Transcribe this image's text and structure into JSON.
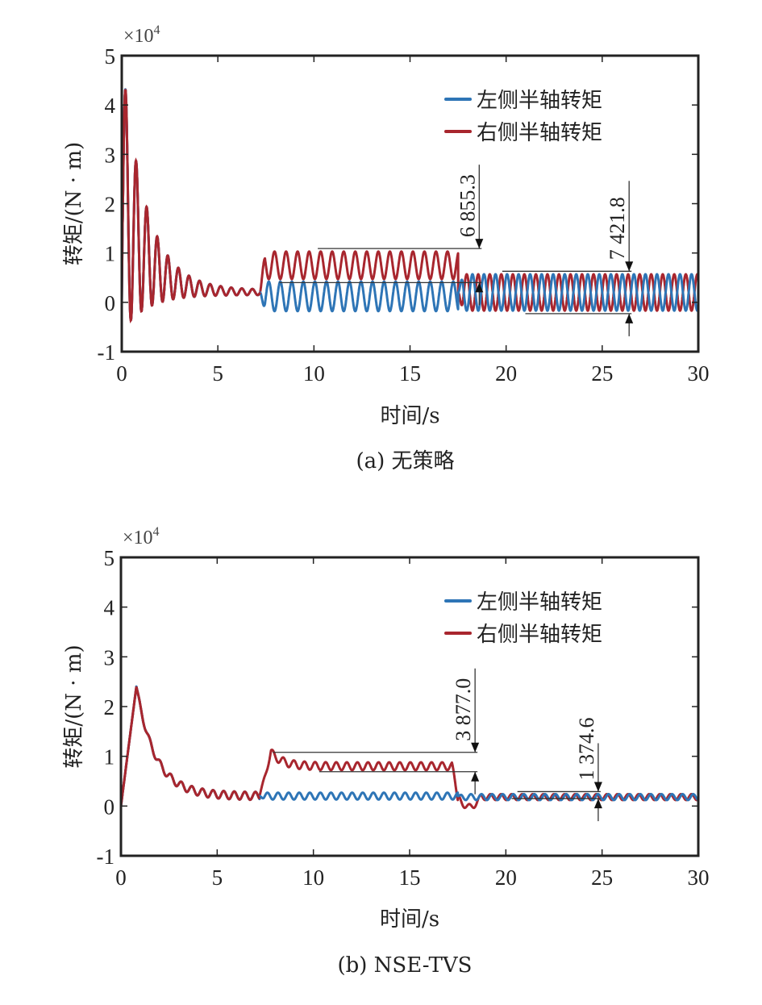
{
  "colors": {
    "left": "#2e75b6",
    "right": "#a8262e",
    "axis": "#222222",
    "annot": "#333333"
  },
  "chart_data": [
    {
      "type": "line",
      "caption": "(a) 无策略",
      "xlabel": "时间/s",
      "ylabel": "转矩/(N · m)",
      "y_multiplier": "×10",
      "y_multiplier_exp": "4",
      "xlim": [
        0,
        30
      ],
      "ylim": [
        -1,
        5
      ],
      "xticks": [
        "0",
        "5",
        "10",
        "15",
        "20",
        "25",
        "30"
      ],
      "yticks": [
        "-1",
        "0",
        "1",
        "2",
        "3",
        "4",
        "5"
      ],
      "legend": {
        "position": "top-right",
        "entries": [
          "左侧半轴转矩",
          "右侧半轴转矩"
        ]
      },
      "series": [
        {
          "name": "左侧半轴转矩",
          "color_key": "left",
          "segments": [
            {
              "t0": 0,
              "t1": 7.2,
              "kind": "shared"
            },
            {
              "t0": 7.2,
              "t1": 17.5,
              "mean": 0.12,
              "amp": 0.3,
              "period": 0.6,
              "phase": 0.5
            },
            {
              "t0": 17.5,
              "t1": 30,
              "mean": 0.2,
              "amp": 0.37,
              "period": 0.6,
              "phase": 0.0
            }
          ]
        },
        {
          "name": "右侧半轴转矩",
          "color_key": "right",
          "segments": [
            {
              "t0": 0,
              "t1": 7.2,
              "mean0": 2.2,
              "mean1": 0.2,
              "amp0": 2.8,
              "amp1": 0.05,
              "period": 0.55,
              "kind": "decay"
            },
            {
              "t0": 7.2,
              "t1": 17.5,
              "mean": 0.75,
              "amp": 0.28,
              "period": 0.6,
              "phase": 0.0
            },
            {
              "t0": 17.5,
              "t1": 30,
              "mean": 0.2,
              "amp": 0.37,
              "period": 0.6,
              "phase": 0.5
            }
          ]
        }
      ],
      "annotations": [
        {
          "label": "6 855.3",
          "x": 18.6,
          "y_top": 1.09,
          "y_bottom": 0.4,
          "x_from_top": 10.2,
          "x_from_bottom": 8.2
        },
        {
          "label": "7 421.8",
          "x": 26.4,
          "y_top": 0.63,
          "y_bottom": -0.23,
          "x_from_top": 19.8,
          "x_from_bottom": 21.0
        }
      ]
    },
    {
      "type": "line",
      "caption": "(b) NSE-TVS",
      "xlabel": "时间/s",
      "ylabel": "转矩/(N · m)",
      "y_multiplier": "×10",
      "y_multiplier_exp": "4",
      "xlim": [
        0,
        30
      ],
      "ylim": [
        -1,
        5
      ],
      "xticks": [
        "0",
        "5",
        "10",
        "15",
        "20",
        "25",
        "30"
      ],
      "yticks": [
        "-1",
        "0",
        "1",
        "2",
        "3",
        "4",
        "5"
      ],
      "legend": {
        "position": "top-right",
        "entries": [
          "左侧半轴转矩",
          "右侧半轴转矩"
        ]
      },
      "series": [
        {
          "name": "左侧半轴转矩",
          "color_key": "left",
          "segments": [
            {
              "t0": 0,
              "t1": 7.2,
              "kind": "shared"
            },
            {
              "t0": 7.2,
              "t1": 17.5,
              "mean": 0.2,
              "amp": 0.07,
              "period": 0.55,
              "phase": 0.5
            },
            {
              "t0": 17.5,
              "t1": 30,
              "mean": 0.18,
              "amp": 0.06,
              "period": 0.55,
              "phase": 0.0
            }
          ]
        },
        {
          "name": "右侧半轴转矩",
          "color_key": "right",
          "segments": [
            {
              "t0": 0,
              "t1": 7.2,
              "kind": "rise-decay",
              "peak": 2.4,
              "peak_t": 0.8,
              "end": 0.2,
              "amp": 0.08,
              "period": 0.55
            },
            {
              "t0": 7.2,
              "t1": 17.5,
              "kind": "plateau",
              "peak": 1.08,
              "mean": 0.8,
              "amp": 0.08,
              "period": 0.55
            },
            {
              "t0": 17.5,
              "t1": 30,
              "kind": "drop",
              "mean": 0.18,
              "amp": 0.06,
              "period": 0.55
            }
          ]
        }
      ],
      "annotations": [
        {
          "label": "3 877.0",
          "x": 18.4,
          "y_top": 1.08,
          "y_bottom": 0.69,
          "x_from_top": 7.9,
          "x_from_bottom": 10.3
        },
        {
          "label": "1 374.6",
          "x": 24.8,
          "y_top": 0.29,
          "y_bottom": 0.15,
          "x_from_top": 20.6,
          "x_from_bottom": 20.3
        }
      ]
    }
  ]
}
